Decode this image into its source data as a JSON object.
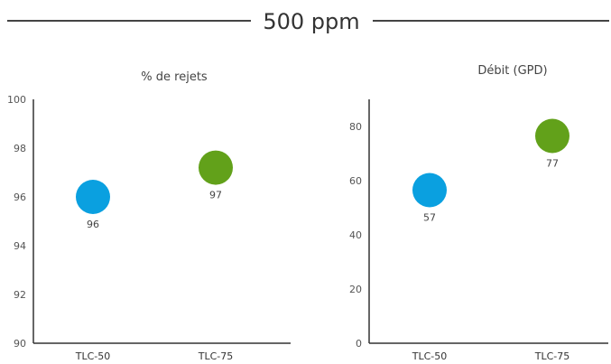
{
  "header": {
    "title": "500 ppm"
  },
  "colors": {
    "tlc50": "#0aa0e0",
    "tlc75": "#62a11a",
    "axis": "#333333",
    "rule": "#444444"
  },
  "chart_data": [
    {
      "type": "scatter",
      "title": "% de rejets",
      "categories": [
        "TLC-50",
        "TLC-75"
      ],
      "values": [
        96,
        97.2
      ],
      "labels": [
        "96",
        "97"
      ],
      "ylim": [
        90,
        100
      ],
      "yticks": [
        90,
        92,
        94,
        96,
        98,
        100
      ],
      "grid": false,
      "legend": "none"
    },
    {
      "type": "scatter",
      "title": "Débit (GPD)",
      "categories": [
        "TLC-50",
        "TLC-75"
      ],
      "values": [
        56.5,
        76.5
      ],
      "labels": [
        "57",
        "77"
      ],
      "ylim": [
        0,
        90
      ],
      "yticks": [
        0,
        20,
        40,
        60,
        80
      ],
      "grid": false,
      "legend": "none"
    }
  ]
}
